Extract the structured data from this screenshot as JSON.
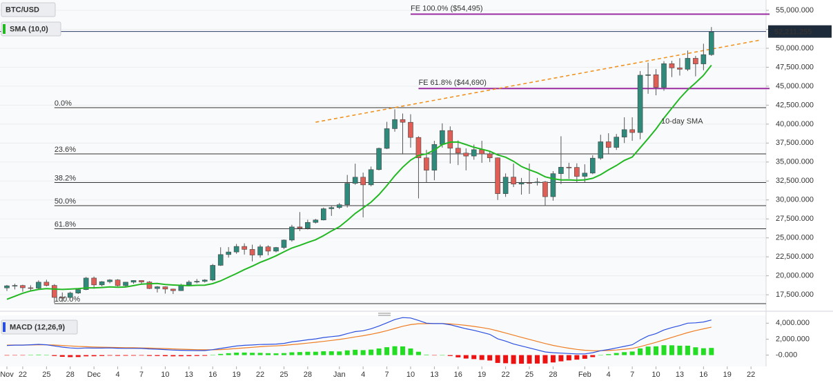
{
  "chart_data": [
    {
      "type": "candlestick",
      "title": "BTC/USD",
      "categories": [
        "Nov",
        null,
        "22",
        null,
        null,
        "25",
        null,
        null,
        "28",
        null,
        null,
        "Dec",
        null,
        null,
        "4",
        null,
        null,
        "7",
        null,
        null,
        "10",
        null,
        null,
        "13",
        null,
        null,
        "16",
        null,
        null,
        "19",
        null,
        null,
        "22",
        null,
        null,
        "25",
        null,
        null,
        "28",
        null,
        null,
        null,
        "Jan",
        null,
        null,
        "4",
        null,
        null,
        "7",
        null,
        null,
        "10",
        null,
        null,
        "13",
        null,
        null,
        "16",
        null,
        null,
        "19",
        null,
        null,
        "22",
        null,
        null,
        "25",
        null,
        null,
        "28",
        null,
        null,
        null,
        "Feb",
        null,
        null,
        "4",
        null,
        null,
        "7",
        null,
        null,
        "10",
        null,
        null,
        "13",
        null,
        null,
        "16",
        null,
        null,
        "19",
        null,
        null,
        "22",
        null
      ],
      "open": [
        18400,
        18680,
        18720,
        18420,
        18370,
        19160,
        18730,
        17150,
        17140,
        17720,
        18180,
        19700,
        18800,
        19220,
        19450,
        18700,
        19160,
        19380,
        19180,
        18320,
        18550,
        18250,
        18040,
        18800,
        19170,
        19270,
        19440,
        21380,
        22800,
        23140,
        23870,
        23480,
        22740,
        23820,
        23250,
        23730,
        24710,
        26440,
        26280,
        27040,
        27360,
        28840,
        29000,
        29370,
        32190,
        33000,
        31990,
        34000,
        36800,
        39400,
        40600,
        40240,
        38240,
        35550,
        33920,
        37320,
        39150,
        36820,
        36180,
        35790,
        36630,
        36070,
        35550,
        30830,
        33010,
        32090,
        32280,
        32270,
        32370,
        30430,
        33470,
        34320,
        34290,
        33110,
        33540,
        35510,
        37670,
        36930,
        38290,
        39270,
        38890,
        46450,
        46510,
        44840,
        47970,
        47410,
        47230,
        48680,
        47940,
        49160,
        null,
        null,
        null,
        null,
        null,
        null
      ],
      "high": [
        18800,
        18950,
        18820,
        18750,
        19400,
        19480,
        18900,
        17800,
        17900,
        18350,
        19850,
        19900,
        19300,
        19550,
        19550,
        19200,
        19420,
        19400,
        19300,
        18640,
        18600,
        18300,
        18950,
        19400,
        19580,
        19550,
        21560,
        23760,
        23780,
        24200,
        24280,
        24100,
        24100,
        24020,
        23800,
        24790,
        26720,
        28400,
        27400,
        27500,
        29000,
        29300,
        29600,
        33300,
        34780,
        33600,
        34400,
        36900,
        40300,
        41950,
        41400,
        41300,
        38400,
        36600,
        37800,
        40100,
        39700,
        37850,
        36800,
        37300,
        37800,
        36400,
        35600,
        33500,
        34800,
        32900,
        34800,
        32900,
        32500,
        33800,
        38400,
        34900,
        34830,
        34700,
        35900,
        38600,
        38800,
        38700,
        40900,
        40900,
        47000,
        48100,
        47250,
        48300,
        48350,
        48700,
        49700,
        49000,
        50600,
        52800,
        null,
        null,
        null,
        null,
        null,
        null
      ],
      "low": [
        18000,
        18200,
        17900,
        18000,
        18200,
        18600,
        16400,
        16550,
        17000,
        17600,
        18100,
        18300,
        18600,
        19000,
        18600,
        18600,
        18950,
        18900,
        18250,
        17800,
        17650,
        17600,
        18000,
        18700,
        19000,
        19100,
        19300,
        21300,
        22400,
        22900,
        22800,
        21900,
        22400,
        22700,
        23100,
        23500,
        24500,
        25900,
        26100,
        26900,
        27300,
        27900,
        28800,
        29000,
        32000,
        27700,
        31800,
        33900,
        36700,
        39000,
        36000,
        36900,
        30200,
        32300,
        32600,
        36900,
        34800,
        34600,
        33900,
        35300,
        34900,
        35000,
        30000,
        30400,
        31700,
        30700,
        30800,
        31900,
        29200,
        29900,
        32100,
        32800,
        32300,
        32300,
        33400,
        35300,
        36100,
        36600,
        37500,
        37800,
        38000,
        44000,
        43800,
        44400,
        46200,
        46400,
        47000,
        46300,
        47100,
        49000,
        null,
        null,
        null,
        null,
        null,
        null
      ],
      "close": [
        18680,
        18720,
        18420,
        18370,
        19160,
        18730,
        17150,
        17140,
        17720,
        18180,
        19700,
        18800,
        19220,
        19450,
        18700,
        19160,
        19380,
        19180,
        18320,
        18550,
        18250,
        18040,
        18800,
        19170,
        19270,
        19440,
        21380,
        22800,
        23140,
        23870,
        23480,
        22740,
        23820,
        23250,
        23730,
        24710,
        26440,
        26280,
        27040,
        27360,
        28840,
        29000,
        29370,
        32190,
        33000,
        31990,
        34000,
        36800,
        39400,
        40600,
        40240,
        38240,
        35550,
        33920,
        37320,
        39150,
        36820,
        36180,
        35790,
        36630,
        36070,
        35550,
        30830,
        33010,
        32090,
        32280,
        32270,
        32370,
        30430,
        33470,
        34320,
        34290,
        33110,
        33540,
        35510,
        37670,
        36930,
        38290,
        39270,
        38890,
        46450,
        46510,
        44840,
        47970,
        47410,
        47230,
        48680,
        47940,
        49160,
        52150,
        null,
        null,
        null,
        null,
        null,
        null
      ],
      "up_color": "#2f8a7c",
      "down_color": "#df5f57",
      "sma": {
        "name": "SMA (10,0)",
        "color": "#22b822",
        "annotation": "10-day SMA",
        "values": [
          16900,
          17300,
          17700,
          18000,
          18200,
          18300,
          18250,
          18200,
          18250,
          18300,
          18400,
          18410,
          18460,
          18540,
          18490,
          18520,
          18700,
          18900,
          18960,
          18990,
          18850,
          18780,
          18740,
          18690,
          18750,
          18770,
          18970,
          19330,
          19820,
          20290,
          20810,
          21270,
          21770,
          22180,
          22630,
          23160,
          23660,
          24010,
          24400,
          24750,
          25290,
          25910,
          26460,
          27300,
          28220,
          28950,
          29700,
          30700,
          31900,
          33180,
          34320,
          35250,
          35870,
          36060,
          36590,
          37310,
          37620,
          37640,
          37300,
          36950,
          36690,
          36420,
          35950,
          35640,
          35100,
          34410,
          33970,
          33590,
          33050,
          32800,
          32630,
          32650,
          32600,
          32650,
          32850,
          33330,
          33970,
          34540,
          35220,
          35660,
          36870,
          38090,
          39350,
          40800,
          42100,
          43400,
          44520,
          45450,
          46440,
          47770,
          null,
          null,
          null,
          null,
          null,
          null
        ]
      },
      "last_price": {
        "value": 52211.255,
        "label": "52,211.255"
      },
      "fib_levels": [
        {
          "label": "0.0%",
          "value": 42170,
          "x_start": 6
        },
        {
          "label": "23.6%",
          "value": 36072,
          "x_start": 6
        },
        {
          "label": "38.2%",
          "value": 32299,
          "x_start": 6
        },
        {
          "label": "50.0%",
          "value": 29250,
          "x_start": 6
        },
        {
          "label": "61.8%",
          "value": 26201,
          "x_start": 6
        },
        {
          "label": "100.0%",
          "value": 16330,
          "x_start": 6
        }
      ],
      "fe_levels": [
        {
          "label": "FE 100.0% ($54,495)",
          "value": 54495,
          "x_start": 51
        },
        {
          "label": "FE 61.8% ($44,690)",
          "value": 44690,
          "x_start": 52
        }
      ],
      "trend_line": {
        "color": "#f0921e",
        "points": [
          [
            39,
            40250
          ],
          [
            95,
            51050
          ]
        ]
      },
      "ylim": [
        15690,
        56365
      ],
      "yticks": [
        {
          "value": 17500,
          "label": "17,500.000"
        },
        {
          "value": 20000,
          "label": "20,000.000"
        },
        {
          "value": 22500,
          "label": "22,500.000"
        },
        {
          "value": 25000,
          "label": "25,000.000"
        },
        {
          "value": 27500,
          "label": "27,500.000"
        },
        {
          "value": 30000,
          "label": "30,000.000"
        },
        {
          "value": 32500,
          "label": "32,500.000"
        },
        {
          "value": 35000,
          "label": "35,000.000"
        },
        {
          "value": 37500,
          "label": "37,500.000"
        },
        {
          "value": 40000,
          "label": "40,000.000"
        },
        {
          "value": 42500,
          "label": "42,500.000"
        },
        {
          "value": 45000,
          "label": "45,000.000"
        },
        {
          "value": 47500,
          "label": "47,500.000"
        },
        {
          "value": 50000,
          "label": "50,000.000"
        },
        {
          "value": 52500,
          "label": "52,500.000"
        },
        {
          "value": 55000,
          "label": "55,000.000"
        }
      ],
      "grid": true
    },
    {
      "type": "macd",
      "title": "MACD (12,26,9)",
      "macd": {
        "color": "#2a4fe0",
        "values": [
          1200,
          1250,
          1250,
          1300,
          1350,
          1300,
          1150,
          1000,
          900,
          850,
          900,
          880,
          880,
          900,
          860,
          850,
          850,
          840,
          780,
          740,
          690,
          630,
          600,
          580,
          570,
          570,
          680,
          840,
          990,
          1140,
          1230,
          1270,
          1330,
          1350,
          1380,
          1470,
          1660,
          1780,
          1920,
          2030,
          2200,
          2320,
          2420,
          2700,
          2950,
          3050,
          3300,
          3650,
          4050,
          4450,
          4700,
          4650,
          4350,
          4000,
          3950,
          3950,
          3800,
          3550,
          3300,
          3100,
          2850,
          2600,
          2050,
          1750,
          1400,
          1150,
          900,
          650,
          400,
          300,
          250,
          200,
          150,
          150,
          300,
          550,
          700,
          900,
          1100,
          1300,
          1900,
          2400,
          2700,
          3150,
          3450,
          3700,
          4000,
          4050,
          4150,
          4400,
          null,
          null,
          null,
          null,
          null,
          null
        ]
      },
      "signal": {
        "color": "#ef7d22",
        "values": [
          1250,
          1260,
          1260,
          1270,
          1290,
          1290,
          1260,
          1210,
          1150,
          1090,
          1050,
          1020,
          990,
          970,
          950,
          930,
          920,
          900,
          880,
          850,
          820,
          780,
          740,
          710,
          680,
          660,
          660,
          690,
          750,
          830,
          910,
          980,
          1050,
          1110,
          1160,
          1220,
          1310,
          1400,
          1500,
          1610,
          1720,
          1840,
          1960,
          2110,
          2280,
          2430,
          2610,
          2820,
          3060,
          3340,
          3610,
          3820,
          3930,
          3940,
          3960,
          3950,
          3910,
          3830,
          3730,
          3600,
          3450,
          3280,
          3030,
          2770,
          2500,
          2230,
          1970,
          1710,
          1450,
          1220,
          1030,
          860,
          720,
          610,
          550,
          550,
          580,
          640,
          730,
          850,
          1060,
          1330,
          1600,
          1910,
          2220,
          2520,
          2820,
          3070,
          3290,
          3500,
          null,
          null,
          null,
          null,
          null,
          null
        ]
      },
      "histogram": {
        "up_color": "#22dd22",
        "down_color": "#ee1111",
        "values": [
          -50,
          -10,
          -10,
          30,
          60,
          10,
          -110,
          -210,
          -250,
          -240,
          -150,
          -140,
          -110,
          -70,
          -90,
          -80,
          -70,
          -60,
          -100,
          -110,
          -130,
          -150,
          -140,
          -130,
          -110,
          -90,
          20,
          150,
          240,
          310,
          320,
          290,
          280,
          240,
          220,
          250,
          350,
          380,
          420,
          420,
          480,
          480,
          460,
          590,
          670,
          620,
          690,
          830,
          990,
          1110,
          1090,
          830,
          420,
          60,
          -10,
          0,
          -110,
          -280,
          -430,
          -500,
          -600,
          -680,
          -980,
          -1020,
          -1100,
          -1080,
          -1070,
          -1060,
          -1050,
          -920,
          -780,
          -660,
          -570,
          -460,
          -250,
          0,
          120,
          260,
          370,
          450,
          840,
          1070,
          1100,
          1240,
          1230,
          1180,
          1180,
          980,
          860,
          900,
          null,
          null,
          null,
          null,
          null,
          null
        ]
      },
      "ylim": [
        -1420,
        4980
      ],
      "yticks": [
        {
          "value": 4000,
          "label": "4,000.000"
        },
        {
          "value": 2000,
          "label": "2,000.000"
        },
        {
          "value": 0,
          "label": "-0.000"
        }
      ]
    }
  ]
}
